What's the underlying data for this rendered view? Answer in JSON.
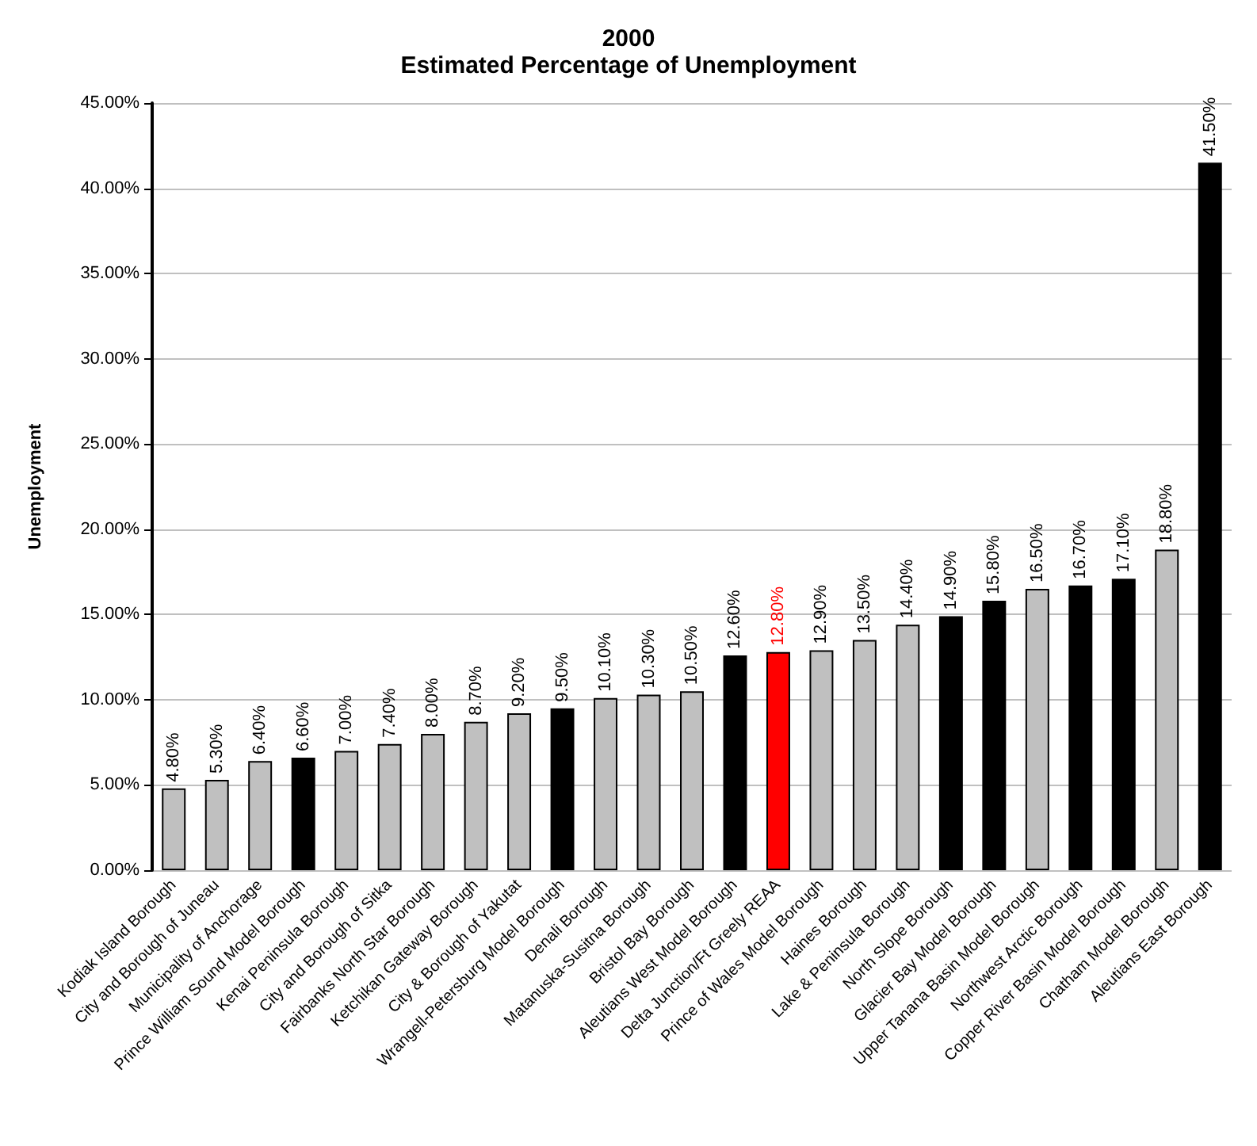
{
  "chart_data": {
    "type": "bar",
    "title": "2000",
    "subtitle": "Estimated Percentage of Unemployment",
    "ylabel": "Unemployment",
    "categories": [
      "Kodiak Island Borough",
      "City and Borough of Juneau",
      "Municipality of Anchorage",
      "Prince William Sound Model Borough",
      "Kenai Peninsula Borough",
      "City and Borough of Sitka",
      "Fairbanks North Star Borough",
      "Ketchikan Gateway Borough",
      "City & Borough of Yakutat",
      "Wrangell-Petersburg Model Borough",
      "Denali Borough",
      "Matanuska-Susitna Borough",
      "Bristol Bay Borough",
      "Aleutians West Model Borough",
      "Delta Junction/Ft Greely REAA",
      "Prince of Wales Model Borough",
      "Haines Borough",
      "Lake & Peninsula Borough",
      "North Slope Borough",
      "Glacier Bay Model Borough",
      "Upper Tanana Basin Model Borough",
      "Northwest Arctic Borough",
      "Copper River Basin Model Borough",
      "Chatham Model Borough",
      "Aleutians East Borough"
    ],
    "values": [
      4.8,
      5.3,
      6.4,
      6.6,
      7.0,
      7.4,
      8.0,
      8.7,
      9.2,
      9.5,
      10.1,
      10.3,
      10.5,
      12.6,
      12.8,
      12.9,
      13.5,
      14.4,
      14.9,
      15.8,
      16.5,
      16.7,
      17.1,
      18.8,
      41.5
    ],
    "value_labels": [
      "4.80%",
      "5.30%",
      "6.40%",
      "6.60%",
      "7.00%",
      "7.40%",
      "8.00%",
      "8.70%",
      "9.20%",
      "9.50%",
      "10.10%",
      "10.30%",
      "10.50%",
      "12.60%",
      "12.80%",
      "12.90%",
      "13.50%",
      "14.40%",
      "14.90%",
      "15.80%",
      "16.50%",
      "16.70%",
      "17.10%",
      "18.80%",
      "41.50%"
    ],
    "colors": [
      "#c0c0c0",
      "#c0c0c0",
      "#c0c0c0",
      "#000000",
      "#c0c0c0",
      "#c0c0c0",
      "#c0c0c0",
      "#c0c0c0",
      "#c0c0c0",
      "#000000",
      "#c0c0c0",
      "#c0c0c0",
      "#c0c0c0",
      "#000000",
      "#ff0000",
      "#c0c0c0",
      "#c0c0c0",
      "#c0c0c0",
      "#000000",
      "#000000",
      "#c0c0c0",
      "#000000",
      "#000000",
      "#c0c0c0",
      "#000000"
    ],
    "ylim": [
      0,
      45
    ],
    "yticks": [
      {
        "value": 0,
        "label": "0.00%"
      },
      {
        "value": 5,
        "label": "5.00%"
      },
      {
        "value": 10,
        "label": "10.00%"
      },
      {
        "value": 15,
        "label": "15.00%"
      },
      {
        "value": 20,
        "label": "20.00%"
      },
      {
        "value": 25,
        "label": "25.00%"
      },
      {
        "value": 30,
        "label": "30.00%"
      },
      {
        "value": 35,
        "label": "35.00%"
      },
      {
        "value": 40,
        "label": "40.00%"
      },
      {
        "value": 45,
        "label": "45.00%"
      }
    ],
    "grid": "y"
  }
}
